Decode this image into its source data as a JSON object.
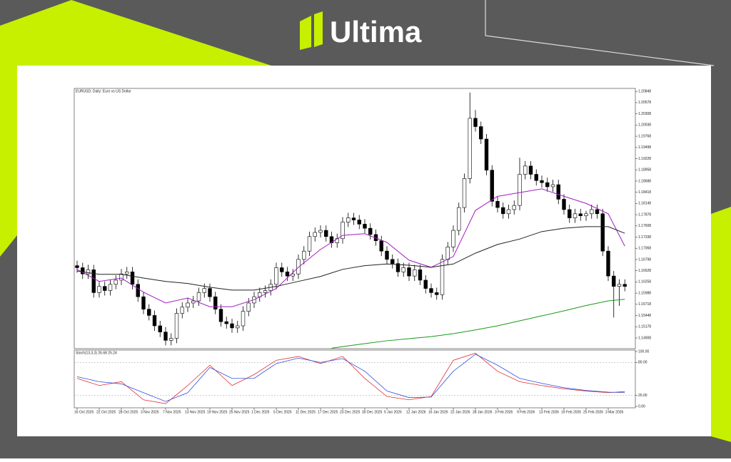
{
  "brand": "Ultima",
  "chart_data": {
    "type": "candlestick",
    "title": "EURUSD, Daily: Euro vs US Dollar",
    "categories": [
      "16 Oct 2025",
      null,
      null,
      null,
      "22 Oct 2025",
      null,
      null,
      null,
      "28 Oct 2025",
      null,
      null,
      null,
      "3 Nov 2025",
      null,
      null,
      null,
      "7 Nov 2025",
      null,
      null,
      null,
      "13 Nov 2025",
      null,
      null,
      null,
      "19 Nov 2025",
      null,
      null,
      null,
      "25 Nov 2025",
      null,
      null,
      null,
      "1 Dec 2025",
      null,
      null,
      null,
      "5 Dec 2025",
      null,
      null,
      null,
      "11 Dec 2025",
      null,
      null,
      null,
      "17 Dec 2025",
      null,
      null,
      null,
      "23 Dec 2025",
      null,
      null,
      null,
      "30 Dec 2025",
      null,
      null,
      null,
      "5 Jan 2026",
      null,
      null,
      null,
      "12 Jan 2026",
      null,
      null,
      null,
      "16 Jan 2026",
      null,
      null,
      null,
      "22 Jan 2026",
      null,
      null,
      null,
      "28 Jan 2026",
      null,
      null,
      null,
      "3 Feb 2026",
      null,
      null,
      null,
      "9 Feb 2026",
      null,
      null,
      null,
      "13 Feb 2026",
      null,
      null,
      null,
      "19 Feb 2026",
      null,
      null,
      null,
      "25 Feb 2026",
      null,
      null,
      null,
      "3 Mar 2026",
      null,
      null,
      null
    ],
    "open": [
      1.1665,
      1.166,
      1.1645,
      1.1655,
      1.16,
      1.1615,
      1.1605,
      1.162,
      1.163,
      1.1645,
      1.165,
      1.162,
      1.159,
      1.156,
      1.1545,
      1.152,
      1.1505,
      1.1485,
      1.149,
      1.155,
      1.1565,
      1.1575,
      1.158,
      1.16,
      1.161,
      1.159,
      1.156,
      1.153,
      1.1525,
      1.1515,
      1.152,
      1.1555,
      1.1575,
      1.159,
      1.16,
      1.1605,
      1.162,
      1.166,
      1.165,
      1.164,
      1.1645,
      1.168,
      1.17,
      1.1735,
      1.1745,
      1.175,
      1.1735,
      1.172,
      1.173,
      1.177,
      1.178,
      1.1775,
      1.1765,
      1.1755,
      1.174,
      1.1725,
      1.17,
      1.168,
      1.167,
      1.165,
      1.166,
      1.164,
      1.1655,
      1.163,
      1.161,
      1.16,
      1.1595,
      1.168,
      1.171,
      1.175,
      1.1805,
      1.1875,
      1.202,
      1.2,
      1.197,
      1.1895,
      1.182,
      1.1805,
      1.179,
      1.18,
      1.181,
      1.1885,
      1.1905,
      1.1885,
      1.187,
      1.1865,
      1.1855,
      1.186,
      1.1825,
      1.18,
      1.178,
      1.179,
      1.1785,
      1.179,
      1.18,
      1.179,
      1.17,
      1.164,
      1.1615,
      1.162
    ],
    "high": [
      1.1677,
      1.1672,
      1.1667,
      1.1667,
      1.1627,
      1.1627,
      1.1632,
      1.1642,
      1.1657,
      1.1662,
      1.1662,
      1.1632,
      1.1602,
      1.1572,
      1.1557,
      1.1532,
      1.1517,
      1.1502,
      1.1562,
      1.1577,
      1.1587,
      1.1592,
      1.1612,
      1.1622,
      1.1622,
      1.1602,
      1.1572,
      1.1542,
      1.1537,
      1.1532,
      1.1567,
      1.1587,
      1.1602,
      1.1612,
      1.1617,
      1.1632,
      1.1672,
      1.1672,
      1.1662,
      1.1657,
      1.1692,
      1.1712,
      1.1747,
      1.1757,
      1.1762,
      1.1762,
      1.1747,
      1.1742,
      1.1782,
      1.1792,
      1.1792,
      1.1787,
      1.1777,
      1.1767,
      1.1752,
      1.1737,
      1.1712,
      1.1692,
      1.1682,
      1.1672,
      1.1672,
      1.1667,
      1.1667,
      1.1642,
      1.1622,
      1.1612,
      1.1692,
      1.1722,
      1.1762,
      1.1817,
      1.1887,
      1.2082,
      1.204,
      1.2012,
      1.1982,
      1.1907,
      1.1832,
      1.1817,
      1.1812,
      1.1822,
      1.1925,
      1.1917,
      1.1917,
      1.1897,
      1.1882,
      1.1877,
      1.1872,
      1.1872,
      1.1837,
      1.1812,
      1.1802,
      1.1802,
      1.1797,
      1.1812,
      1.1812,
      1.1802,
      1.1712,
      1.1652,
      1.1632,
      1.1632
    ],
    "low": [
      1.1648,
      1.1633,
      1.1633,
      1.1588,
      1.1588,
      1.1593,
      1.1593,
      1.1608,
      1.1618,
      1.1633,
      1.1608,
      1.1578,
      1.1548,
      1.1533,
      1.1508,
      1.1493,
      1.1473,
      1.1473,
      1.1478,
      1.1538,
      1.1553,
      1.1563,
      1.1568,
      1.1588,
      1.1578,
      1.1548,
      1.1518,
      1.1513,
      1.1503,
      1.1503,
      1.1508,
      1.1543,
      1.1563,
      1.1578,
      1.1588,
      1.1593,
      1.1608,
      1.1638,
      1.1628,
      1.1628,
      1.1633,
      1.1668,
      1.1688,
      1.1723,
      1.1733,
      1.1723,
      1.1708,
      1.1708,
      1.1718,
      1.1758,
      1.1763,
      1.1753,
      1.1743,
      1.1728,
      1.1713,
      1.1688,
      1.1668,
      1.1658,
      1.1638,
      1.1638,
      1.1628,
      1.1628,
      1.1618,
      1.1598,
      1.1588,
      1.1583,
      1.1583,
      1.1668,
      1.1698,
      1.1738,
      1.1793,
      1.1863,
      1.1988,
      1.1958,
      1.1883,
      1.1808,
      1.1793,
      1.1778,
      1.1778,
      1.1788,
      1.1798,
      1.1873,
      1.1873,
      1.1858,
      1.1853,
      1.1843,
      1.1843,
      1.1813,
      1.1788,
      1.1768,
      1.1768,
      1.1773,
      1.1773,
      1.1778,
      1.1778,
      1.1688,
      1.1628,
      1.154,
      1.1568,
      1.1603
    ],
    "close": [
      1.166,
      1.1645,
      1.1655,
      1.16,
      1.1615,
      1.1605,
      1.162,
      1.163,
      1.1645,
      1.165,
      1.162,
      1.159,
      1.156,
      1.1545,
      1.152,
      1.1505,
      1.1485,
      1.149,
      1.155,
      1.1565,
      1.1575,
      1.158,
      1.16,
      1.161,
      1.159,
      1.156,
      1.153,
      1.1525,
      1.1515,
      1.152,
      1.1555,
      1.1575,
      1.159,
      1.16,
      1.1605,
      1.162,
      1.166,
      1.165,
      1.164,
      1.1645,
      1.168,
      1.17,
      1.1735,
      1.1745,
      1.175,
      1.1735,
      1.172,
      1.173,
      1.177,
      1.178,
      1.1775,
      1.1765,
      1.1755,
      1.174,
      1.1725,
      1.17,
      1.168,
      1.167,
      1.165,
      1.166,
      1.164,
      1.1655,
      1.163,
      1.161,
      1.16,
      1.1595,
      1.168,
      1.171,
      1.175,
      1.1805,
      1.1875,
      1.202,
      1.2,
      1.197,
      1.1895,
      1.182,
      1.1805,
      1.179,
      1.18,
      1.181,
      1.1885,
      1.1905,
      1.1885,
      1.187,
      1.1865,
      1.1855,
      1.186,
      1.1825,
      1.18,
      1.178,
      1.179,
      1.1785,
      1.179,
      1.18,
      1.179,
      1.17,
      1.164,
      1.1615,
      1.162,
      1.1615
    ],
    "up_color": "#ffffff",
    "down_color": "#000000",
    "ylim": [
      1.1465,
      1.2092
    ],
    "yticks": [
      1.20848,
      1.20578,
      1.20308,
      1.20038,
      1.19768,
      1.19498,
      1.19228,
      1.18958,
      1.18688,
      1.18418,
      1.18148,
      1.17878,
      1.17608,
      1.17338,
      1.17068,
      1.16798,
      1.16528,
      1.16258,
      1.15988,
      1.15718,
      1.15448,
      1.15178,
      1.14908
    ],
    "overlays": [
      {
        "color": "#a020c0",
        "x": [
          0,
          4,
          8,
          12,
          16,
          20,
          24,
          28,
          32,
          36,
          40,
          44,
          48,
          52,
          56,
          60,
          64,
          68,
          72,
          76,
          80,
          84,
          88,
          92,
          96,
          99
        ],
        "values": [
          1.1656,
          1.1627,
          1.1635,
          1.1601,
          1.1575,
          1.1587,
          1.1566,
          1.1566,
          1.1583,
          1.161,
          1.1661,
          1.1704,
          1.1738,
          1.1742,
          1.1721,
          1.1678,
          1.1661,
          1.1687,
          1.1798,
          1.1832,
          1.1841,
          1.185,
          1.1832,
          1.1815,
          1.179,
          1.1712
        ]
      },
      {
        "color": "#222222",
        "x": [
          0,
          4,
          8,
          12,
          16,
          20,
          24,
          28,
          32,
          36,
          40,
          44,
          48,
          52,
          56,
          60,
          64,
          68,
          72,
          76,
          80,
          84,
          88,
          92,
          96,
          99
        ],
        "values": [
          1.1652,
          1.1644,
          1.1644,
          1.1635,
          1.1627,
          1.1622,
          1.1613,
          1.1606,
          1.1606,
          1.1615,
          1.1627,
          1.1639,
          1.1656,
          1.1665,
          1.1669,
          1.1666,
          1.1661,
          1.1669,
          1.1695,
          1.1716,
          1.1729,
          1.1747,
          1.1755,
          1.1759,
          1.1759,
          1.1743
        ]
      },
      {
        "color": "#1a9a1a",
        "x": [
          46,
          48,
          52,
          56,
          60,
          64,
          68,
          72,
          76,
          80,
          84,
          88,
          92,
          96,
          99
        ],
        "values": [
          1.1466,
          1.147,
          1.1477,
          1.1484,
          1.1489,
          1.1494,
          1.1501,
          1.151,
          1.152,
          1.1532,
          1.1544,
          1.1556,
          1.1569,
          1.158,
          1.1584
        ]
      }
    ],
    "indicator": {
      "title": "Stoch(13,3,3) 26.68 25.24",
      "ylim": [
        0,
        100
      ],
      "yticks": [
        {
          "value": 100,
          "label": "100.00"
        },
        {
          "value": 80,
          "label": "80.00"
        },
        {
          "value": 20,
          "label": "20.00"
        },
        {
          "value": 0,
          "label": "0.00"
        }
      ],
      "levels": [
        80,
        20
      ],
      "x": [
        0,
        4,
        8,
        12,
        16,
        20,
        24,
        28,
        32,
        36,
        40,
        44,
        48,
        52,
        56,
        60,
        64,
        68,
        72,
        76,
        80,
        84,
        88,
        92,
        96,
        99
      ],
      "series": [
        {
          "color": "#e03030",
          "values": [
            51,
            38,
            45,
            12,
            5,
            38,
            75,
            38,
            58,
            84,
            91,
            78,
            91,
            51,
            18,
            12,
            18,
            84,
            97,
            64,
            45,
            38,
            32,
            28,
            25,
            27
          ]
        },
        {
          "color": "#3050e0",
          "values": [
            54,
            45,
            41,
            25,
            9,
            25,
            71,
            51,
            51,
            78,
            88,
            80,
            87,
            64,
            28,
            16,
            17,
            64,
            95,
            75,
            51,
            42,
            34,
            29,
            26,
            25
          ]
        }
      ]
    }
  }
}
